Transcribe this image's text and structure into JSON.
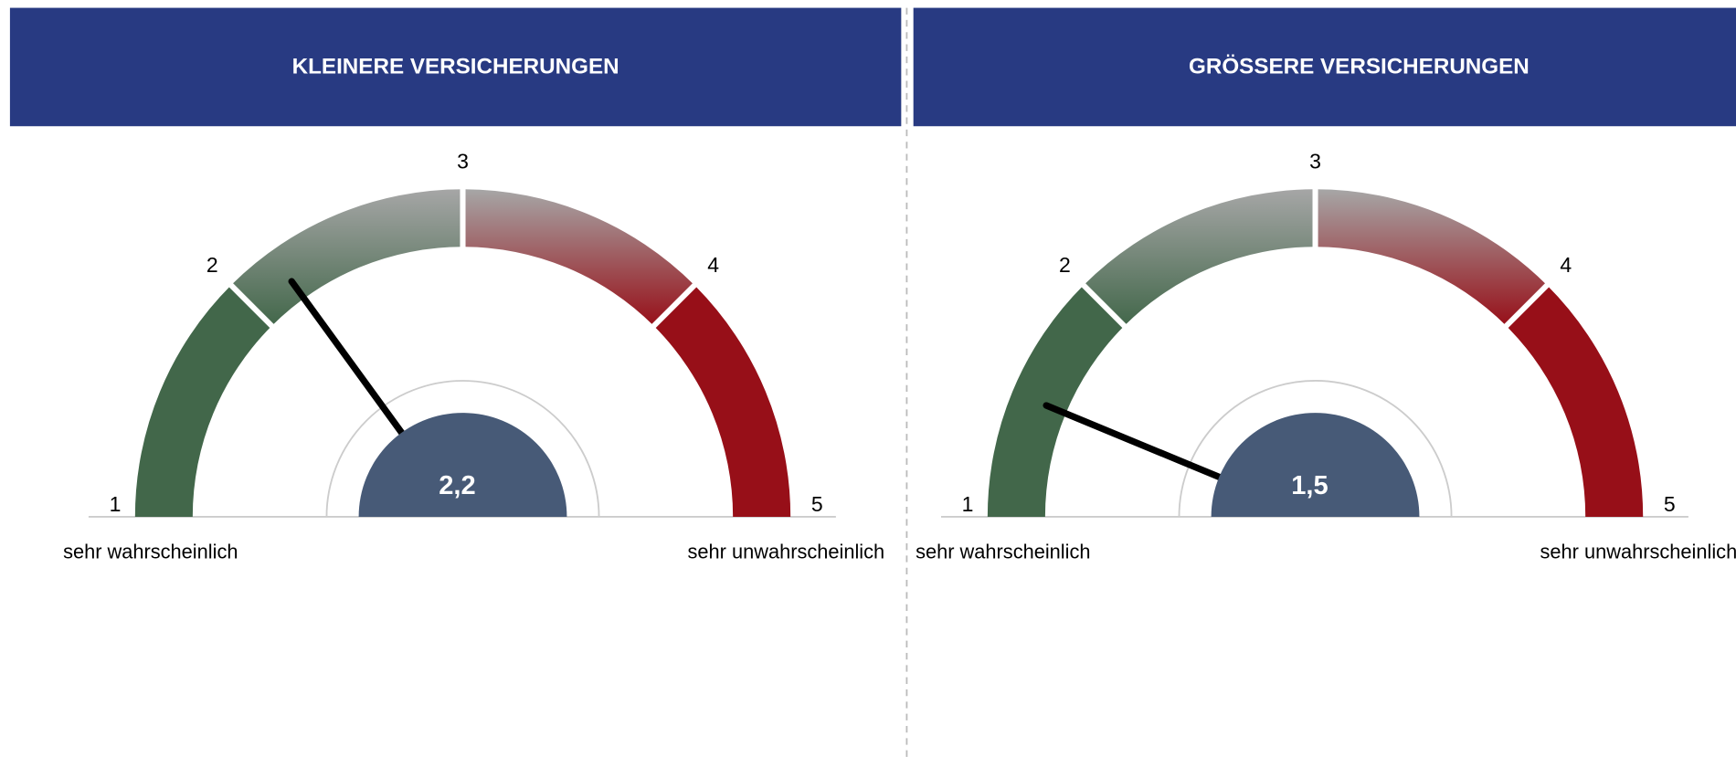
{
  "chart_data": [
    {
      "type": "gauge",
      "title": "KLEINERE VERSICHERUNGEN",
      "value": 2.2,
      "value_label": "2,2",
      "ylim": [
        1,
        5
      ],
      "yticks": [
        1,
        2,
        3,
        4,
        5
      ],
      "low_label": "sehr wahrscheinlich",
      "high_label": "sehr unwahrscheinlich",
      "colors": {
        "good": "#42674a",
        "neutral": "#a6a6a6",
        "bad": "#970f18",
        "header": "#283a82",
        "hub": "#475a77",
        "needle": "#000000"
      }
    },
    {
      "type": "gauge",
      "title": "GRÖSSERE VERSICHERUNGEN",
      "value": 1.5,
      "value_label": "1,5",
      "ylim": [
        1,
        5
      ],
      "yticks": [
        1,
        2,
        3,
        4,
        5
      ],
      "low_label": "sehr wahrscheinlich",
      "high_label": "sehr unwahrscheinlich",
      "colors": {
        "good": "#42674a",
        "neutral": "#a6a6a6",
        "bad": "#970f18",
        "header": "#283a82",
        "hub": "#475a77",
        "needle": "#000000"
      }
    }
  ]
}
